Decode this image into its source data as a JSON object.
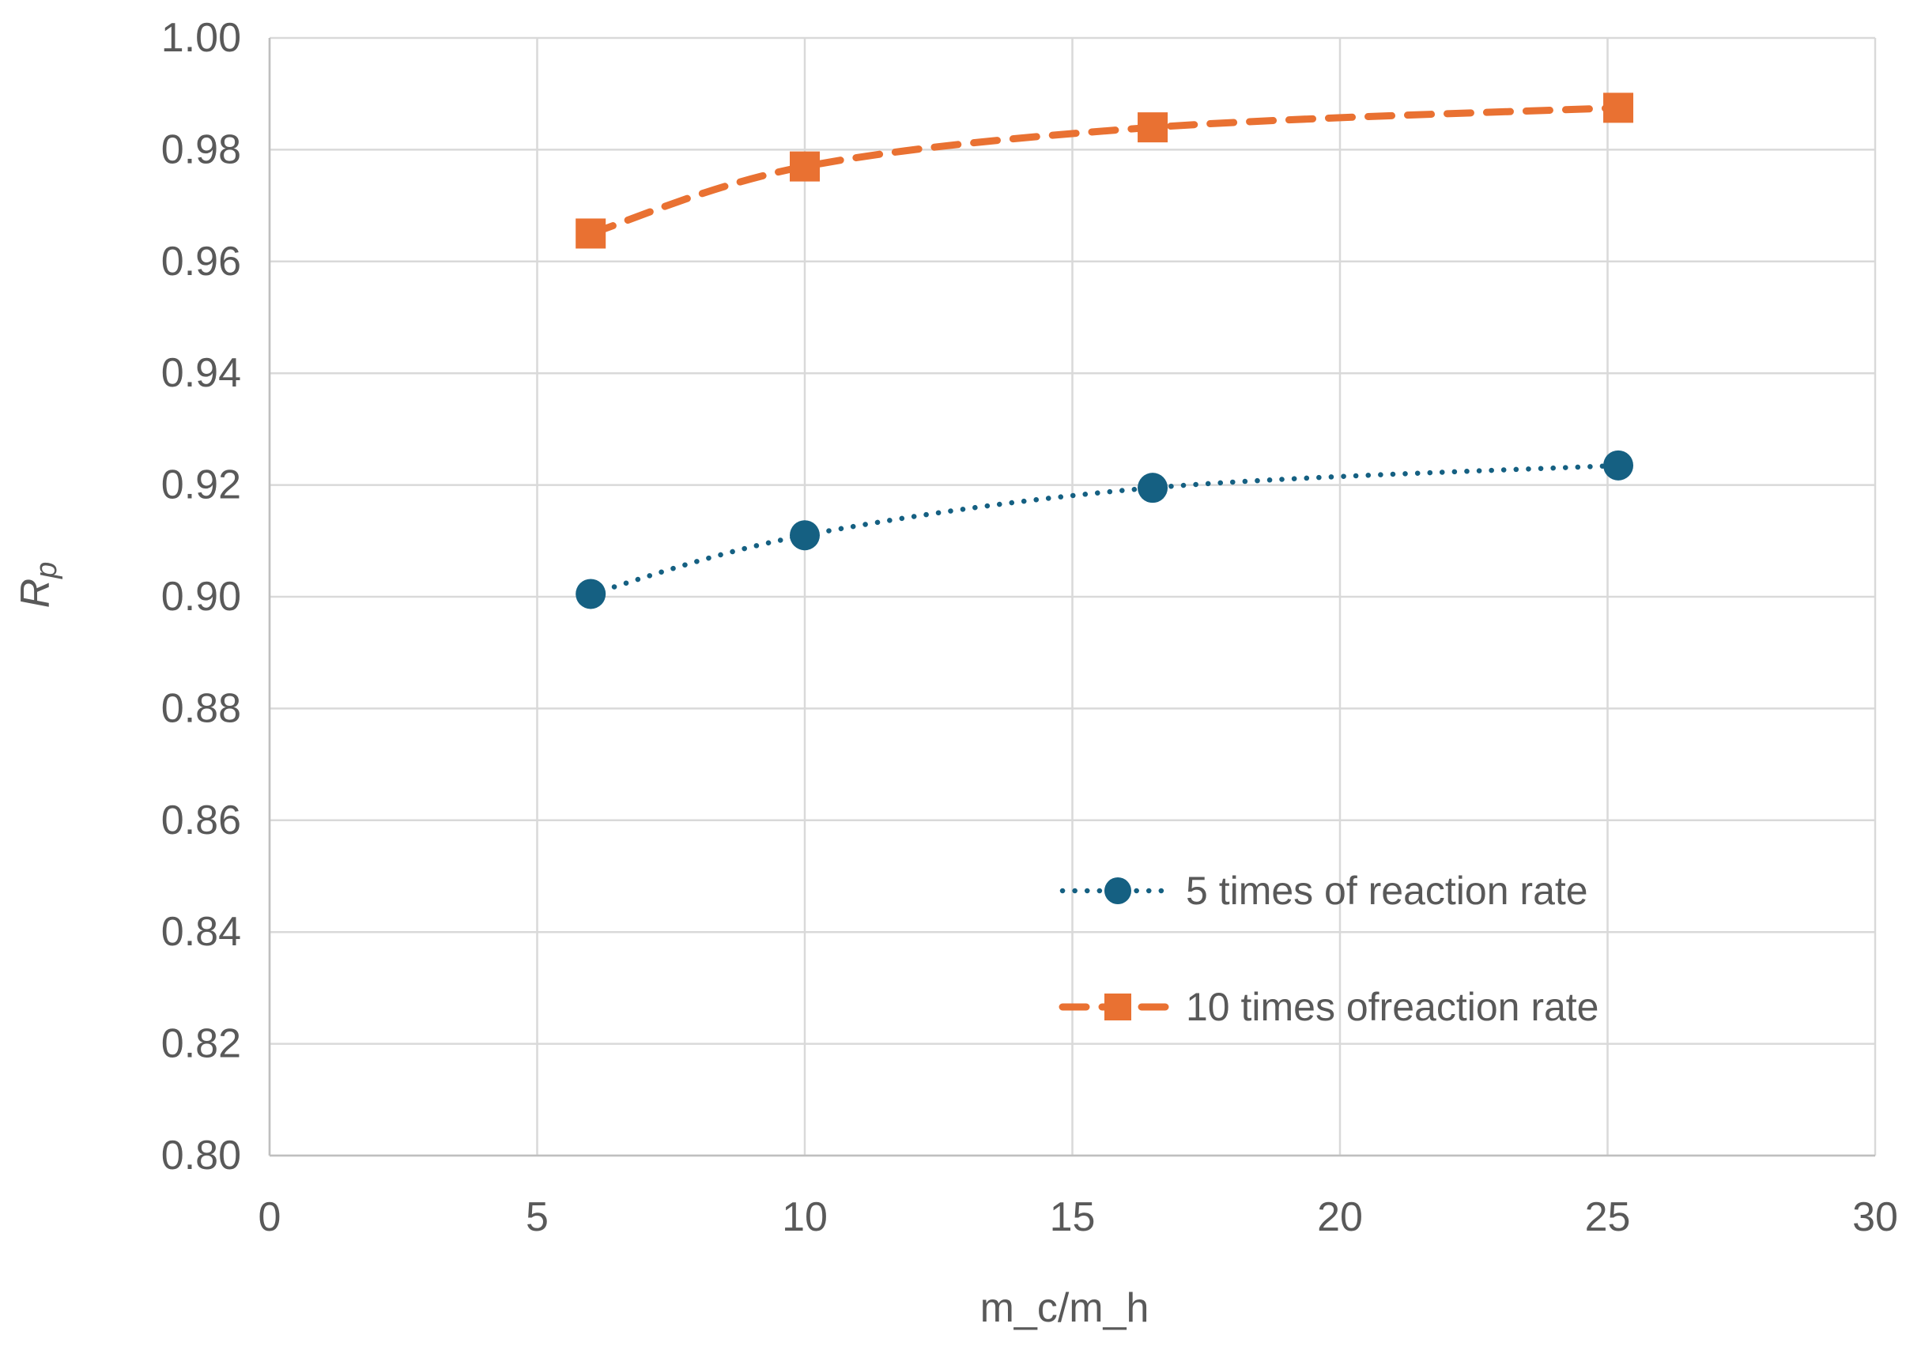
{
  "chart_data": {
    "type": "line",
    "title": "",
    "xlabel": "m_c/m_h",
    "ylabel": "R_p",
    "ylabel_main": "R",
    "ylabel_sub": "p",
    "x": [
      6,
      10,
      16.5,
      25.2
    ],
    "series": [
      {
        "name": "5 times of reaction rate",
        "values": [
          0.9005,
          0.911,
          0.9195,
          0.9235
        ],
        "color": "#156082",
        "line_style": "dotted",
        "marker": "circle"
      },
      {
        "name": "10 times ofreaction rate",
        "values": [
          0.965,
          0.977,
          0.984,
          0.9875
        ],
        "color": "#E97132",
        "line_style": "dashed",
        "marker": "square"
      }
    ],
    "xlim": [
      0,
      30
    ],
    "ylim": [
      0.8,
      1.0
    ],
    "x_ticks": [
      "0",
      "5",
      "10",
      "15",
      "20",
      "25",
      "30"
    ],
    "y_ticks": [
      "0.80",
      "0.82",
      "0.84",
      "0.86",
      "0.88",
      "0.90",
      "0.92",
      "0.94",
      "0.96",
      "0.98",
      "1.00"
    ],
    "grid": true,
    "legend_position": "inside-right",
    "legend": [
      {
        "label": "5 times of reaction rate"
      },
      {
        "label": "10 times ofreaction rate"
      }
    ],
    "colors": {
      "grid": "#D9D9D9",
      "axis": "#BFBFBF",
      "text": "#595959",
      "background": "#FFFFFF",
      "series1": "#156082",
      "series2": "#E97132"
    }
  }
}
